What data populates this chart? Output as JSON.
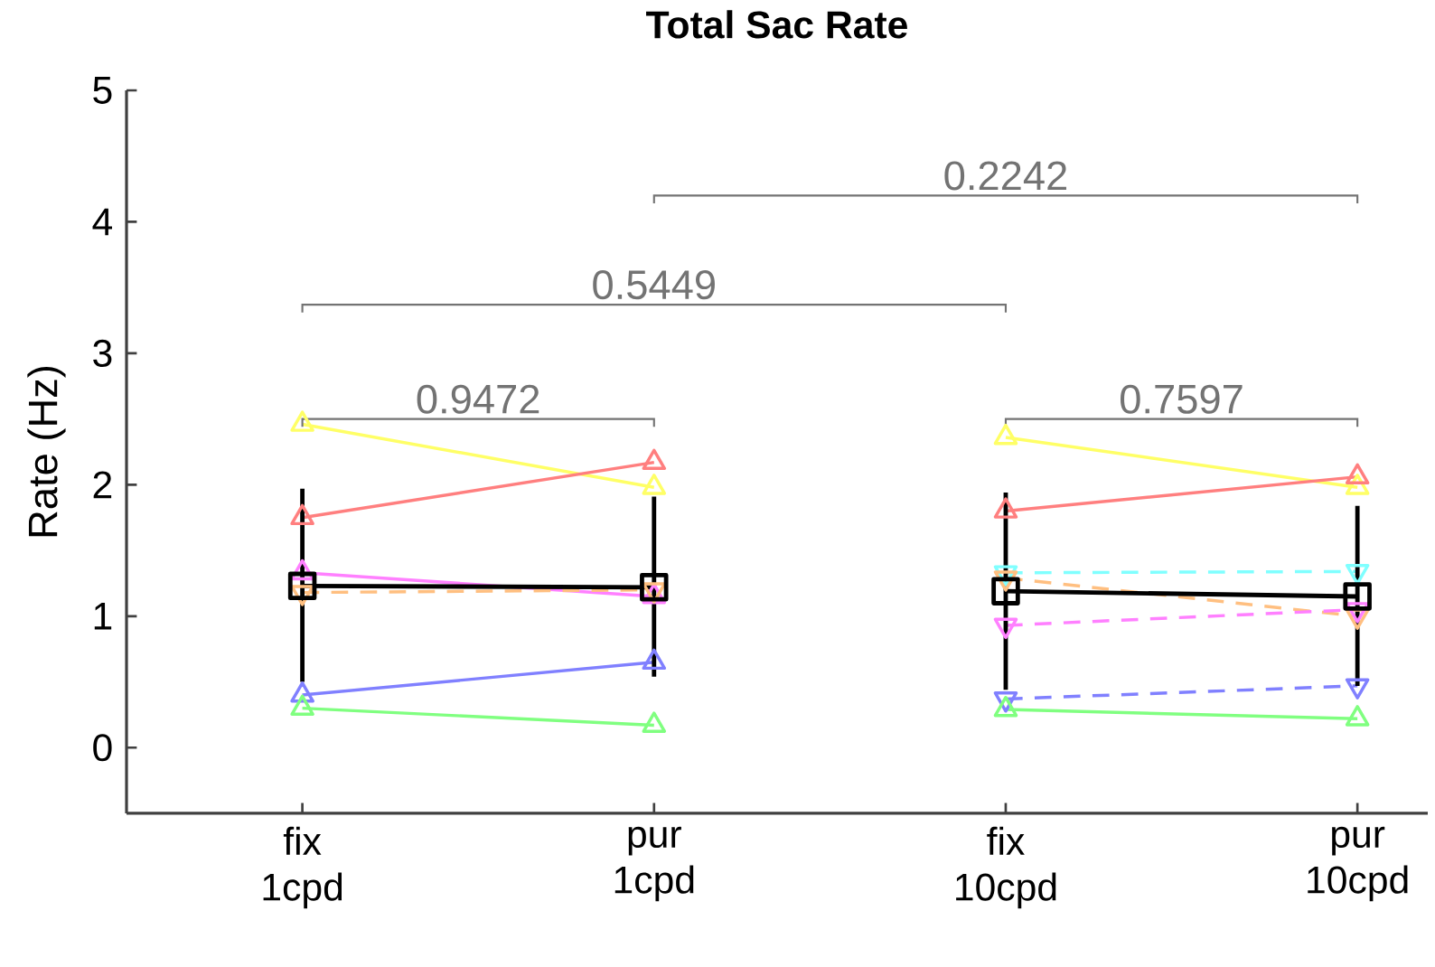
{
  "chart_data": {
    "type": "line",
    "title": "Total Sac Rate",
    "ylabel": "Rate (Hz)",
    "categories": [
      "fix 1cpd",
      "pur 1cpd",
      "fix 10cpd",
      "pur 10cpd"
    ],
    "ylim": [
      -0.5,
      5
    ],
    "yticks": [
      0,
      1,
      2,
      3,
      4,
      5
    ],
    "annotations": [
      "0.9472",
      "0.7597",
      "0.5449",
      "0.2242"
    ],
    "series": [
      {
        "values": [
          2.46,
          1.98,
          null,
          null
        ],
        "color": "#ffff66",
        "marker": "triangle",
        "line_style": "solid"
      },
      {
        "values": [
          1.75,
          2.17,
          null,
          null
        ],
        "color": "#ff7f7f",
        "marker": "triangle",
        "line_style": "solid"
      },
      {
        "values": [
          1.33,
          1.15,
          null,
          null
        ],
        "color": "#ff80ff",
        "marker": "triangle",
        "line_style": "solid"
      },
      {
        "values": [
          1.18,
          1.2,
          null,
          null
        ],
        "color": "#ffbf80",
        "marker": "triangle_down",
        "line_style": "dashed"
      },
      {
        "values": [
          0.4,
          0.65,
          null,
          null
        ],
        "color": "#8080ff",
        "marker": "triangle",
        "line_style": "solid"
      },
      {
        "values": [
          0.3,
          0.17,
          null,
          null
        ],
        "color": "#80ff80",
        "marker": "triangle",
        "line_style": "solid"
      },
      {
        "values": [
          null,
          null,
          2.36,
          1.98
        ],
        "color": "#ffff66",
        "marker": "triangle",
        "line_style": "solid"
      },
      {
        "values": [
          null,
          null,
          1.8,
          2.06
        ],
        "color": "#ff7f7f",
        "marker": "triangle",
        "line_style": "solid"
      },
      {
        "values": [
          null,
          null,
          1.33,
          1.34
        ],
        "color": "#80ffff",
        "marker": "triangle_down",
        "line_style": "dashed"
      },
      {
        "values": [
          null,
          null,
          1.29,
          1.0
        ],
        "color": "#ffbf80",
        "marker": "triangle_down",
        "line_style": "dashed"
      },
      {
        "values": [
          null,
          null,
          0.93,
          1.05
        ],
        "color": "#ff80ff",
        "marker": "triangle_down",
        "line_style": "dashed"
      },
      {
        "values": [
          null,
          null,
          0.37,
          0.47
        ],
        "color": "#8080ff",
        "marker": "triangle_down",
        "line_style": "dashed"
      },
      {
        "values": [
          null,
          null,
          0.29,
          0.22
        ],
        "color": "#80ff80",
        "marker": "triangle",
        "line_style": "solid"
      },
      {
        "values": [
          1.23,
          1.22,
          null,
          null
        ],
        "color": "#000000",
        "marker": "square",
        "line_style": "solid",
        "errors": [
          [
            0.5,
            1.97
          ],
          [
            0.54,
            1.91
          ],
          null,
          null
        ]
      },
      {
        "values": [
          null,
          null,
          1.19,
          1.15
        ],
        "color": "#000000",
        "marker": "square",
        "line_style": "solid",
        "errors": [
          null,
          null,
          [
            0.44,
            1.94
          ],
          [
            0.47,
            1.84
          ]
        ]
      }
    ]
  }
}
